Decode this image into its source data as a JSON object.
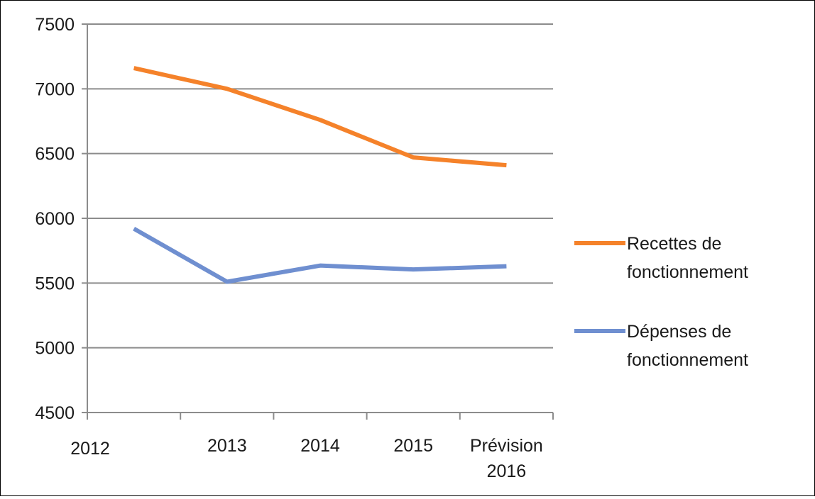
{
  "chart_data": {
    "type": "line",
    "categories": [
      "2012",
      "2013",
      "2014",
      "2015",
      "Prévision 2016"
    ],
    "category_lines": [
      [
        "2012"
      ],
      [
        "2013"
      ],
      [
        "2014"
      ],
      [
        "2015"
      ],
      [
        "Prévision",
        "2016"
      ]
    ],
    "series": [
      {
        "name_lines": [
          "Recettes de",
          "fonctionnement"
        ],
        "name": "Recettes de fonctionnement",
        "color": "#f5822a",
        "values": [
          7160,
          7000,
          6760,
          6470,
          6410
        ]
      },
      {
        "name_lines": [
          "Dépenses de",
          "fonctionnement"
        ],
        "name": "Dépenses de fonctionnement",
        "color": "#6f8fd0",
        "values": [
          5920,
          5510,
          5635,
          5605,
          5630
        ]
      }
    ],
    "ylim": [
      4500,
      7500
    ],
    "yticks": [
      7500,
      7000,
      6500,
      6000,
      5500,
      5000,
      4500
    ],
    "grid": true,
    "legend": "right"
  }
}
